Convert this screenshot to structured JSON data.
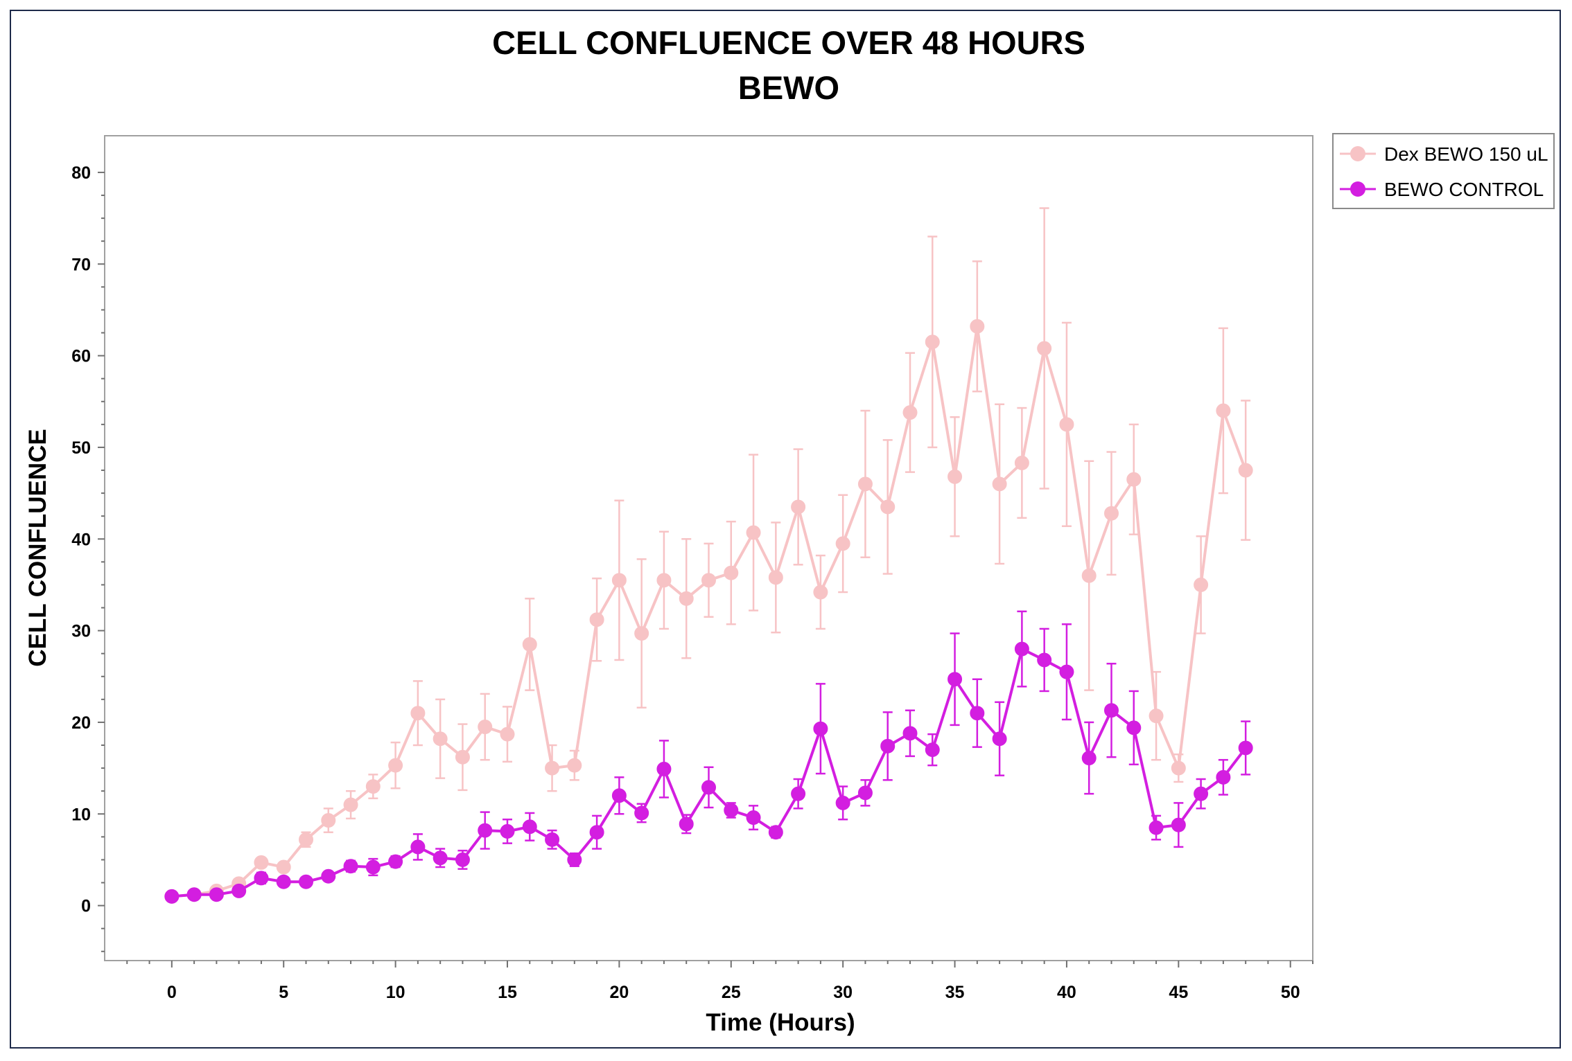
{
  "chart_data": {
    "type": "line",
    "title": "CELL CONFLUENCE OVER 48 HOURS",
    "subtitle": "BEWO",
    "xlabel": "Time (Hours)",
    "ylabel": "CELL CONFLUENCE",
    "xlim": [
      -3,
      51
    ],
    "ylim": [
      -6,
      84
    ],
    "xticks": [
      0,
      5,
      10,
      15,
      20,
      25,
      30,
      35,
      40,
      45,
      50
    ],
    "yticks": [
      0,
      10,
      20,
      30,
      40,
      50,
      60,
      70,
      80
    ],
    "legend_position": "top-right outside",
    "grid": false,
    "x": [
      0,
      1,
      2,
      3,
      4,
      5,
      6,
      7,
      8,
      9,
      10,
      11,
      12,
      13,
      14,
      15,
      16,
      17,
      18,
      19,
      20,
      21,
      22,
      23,
      24,
      25,
      26,
      27,
      28,
      29,
      30,
      31,
      32,
      33,
      34,
      35,
      36,
      37,
      38,
      39,
      40,
      41,
      42,
      43,
      44,
      45,
      46,
      47,
      48
    ],
    "series": [
      {
        "name": "Dex BEWO 150 uL",
        "color": "#f7c3c5",
        "values": [
          1.0,
          1.2,
          1.6,
          2.4,
          4.7,
          4.2,
          7.2,
          9.3,
          11.0,
          13.0,
          15.3,
          21.0,
          18.2,
          16.2,
          19.5,
          18.7,
          28.5,
          15.0,
          15.3,
          31.2,
          35.5,
          29.7,
          35.5,
          33.5,
          35.5,
          36.3,
          40.7,
          35.8,
          43.5,
          34.2,
          39.5,
          46.0,
          43.5,
          53.8,
          61.5,
          46.8,
          63.2,
          46.0,
          48.3,
          60.8,
          52.5,
          36.0,
          42.8,
          46.5,
          20.7,
          15.0,
          35.0,
          54.0,
          47.5
        ],
        "errors": [
          0.2,
          0.2,
          0.3,
          0.4,
          0.5,
          0.5,
          0.8,
          1.3,
          1.5,
          1.3,
          2.5,
          3.5,
          4.3,
          3.6,
          3.6,
          3.0,
          5.0,
          2.5,
          1.6,
          4.5,
          8.7,
          8.1,
          5.3,
          6.5,
          4.0,
          5.6,
          8.5,
          6.0,
          6.3,
          4.0,
          5.3,
          8.0,
          7.3,
          6.5,
          11.5,
          6.5,
          7.1,
          8.7,
          6.0,
          15.3,
          11.1,
          12.5,
          6.7,
          6.0,
          4.8,
          1.5,
          5.3,
          9.0,
          7.6
        ]
      },
      {
        "name": "BEWO CONTROL",
        "color": "#d31ee0",
        "values": [
          1.0,
          1.2,
          1.2,
          1.6,
          3.0,
          2.6,
          2.6,
          3.2,
          4.3,
          4.2,
          4.8,
          6.4,
          5.2,
          5.0,
          8.2,
          8.1,
          8.6,
          7.2,
          5.0,
          8.0,
          12.0,
          10.1,
          14.9,
          8.9,
          12.9,
          10.4,
          9.6,
          8.0,
          12.2,
          19.3,
          11.2,
          12.3,
          17.4,
          18.8,
          17.0,
          24.7,
          21.0,
          18.2,
          28.0,
          26.8,
          25.5,
          16.1,
          21.3,
          19.4,
          8.5,
          8.8,
          12.2,
          14.0,
          17.2
        ],
        "errors": [
          0.2,
          0.2,
          0.2,
          0.3,
          0.6,
          0.4,
          0.4,
          0.5,
          0.6,
          0.9,
          0.6,
          1.4,
          1.0,
          1.0,
          2.0,
          1.3,
          1.5,
          1.0,
          0.7,
          1.8,
          2.0,
          1.0,
          3.1,
          1.0,
          2.2,
          0.8,
          1.3,
          0.6,
          1.6,
          4.9,
          1.8,
          1.4,
          3.7,
          2.5,
          1.7,
          5.0,
          3.7,
          4.0,
          4.1,
          3.4,
          5.2,
          3.9,
          5.1,
          4.0,
          1.3,
          2.4,
          1.6,
          1.9,
          2.9
        ]
      }
    ]
  }
}
